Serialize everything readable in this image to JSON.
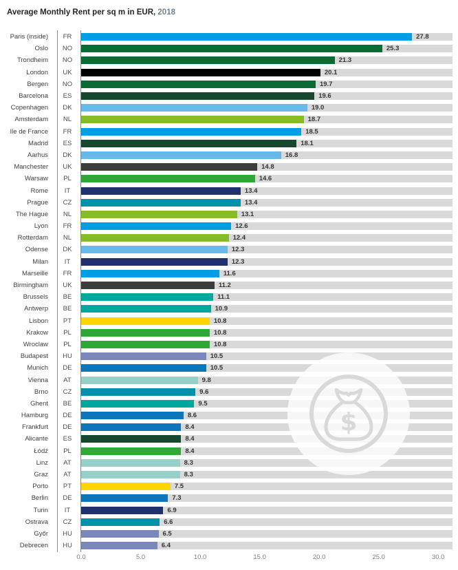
{
  "title": {
    "main": "Average Monthly Rent per sq m in EUR,",
    "year": "2018"
  },
  "colors": {
    "FR": "#009ee3",
    "NO": "#0a6b35",
    "UK_LONDON": "#000000",
    "UK": "#3c3c3b",
    "ES": "#17482d",
    "DK": "#66b9e8",
    "NL": "#86bc25",
    "PL": "#2fa838",
    "IT": "#21306f",
    "CZ": "#0092ad",
    "BE": "#00a79c",
    "PT": "#ffd500",
    "HU": "#7b86ba",
    "DE": "#0d75ba",
    "AT": "#97d0c7",
    "track": "#d9d9d9",
    "watermark": "#d9d9d9",
    "axis_label": "#7f7f7f"
  },
  "watermark": {
    "icon": "money-bag-icon"
  },
  "chart_data": {
    "type": "bar",
    "orientation": "horizontal",
    "title": "Average Monthly Rent per sq m in EUR, 2018",
    "xlabel": "",
    "ylabel": "",
    "xlim": [
      0,
      30
    ],
    "track_max": 31.2,
    "grid": false,
    "legend": false,
    "x_ticks": [
      "0.0",
      "5.0",
      "10.0",
      "15.0",
      "20.0",
      "25.0",
      "30.0"
    ],
    "x_tick_values": [
      0,
      5,
      10,
      15,
      20,
      25,
      30
    ],
    "rows": [
      {
        "city": "Paris (inside)",
        "country": "FR",
        "value": 27.8,
        "label": "27.8",
        "color_key": "FR"
      },
      {
        "city": "Oslo",
        "country": "NO",
        "value": 25.3,
        "label": "25.3",
        "color_key": "NO"
      },
      {
        "city": "Trondheim",
        "country": "NO",
        "value": 21.3,
        "label": "21.3",
        "color_key": "NO"
      },
      {
        "city": "London",
        "country": "UK",
        "value": 20.1,
        "label": "20.1",
        "color_key": "UK_LONDON"
      },
      {
        "city": "Bergen",
        "country": "NO",
        "value": 19.7,
        "label": "19.7",
        "color_key": "NO"
      },
      {
        "city": "Barcelona",
        "country": "ES",
        "value": 19.6,
        "label": "19.6",
        "color_key": "ES"
      },
      {
        "city": "Copenhagen",
        "country": "DK",
        "value": 19.0,
        "label": "19.0",
        "color_key": "DK"
      },
      {
        "city": "Amsterdam",
        "country": "NL",
        "value": 18.7,
        "label": "18.7",
        "color_key": "NL"
      },
      {
        "city": "Ile de France",
        "country": "FR",
        "value": 18.5,
        "label": "18.5",
        "color_key": "FR"
      },
      {
        "city": "Madrid",
        "country": "ES",
        "value": 18.1,
        "label": "18.1",
        "color_key": "ES"
      },
      {
        "city": "Aarhus",
        "country": "DK",
        "value": 16.8,
        "label": "16.8",
        "color_key": "DK"
      },
      {
        "city": "Manchester",
        "country": "UK",
        "value": 14.8,
        "label": "14.8",
        "color_key": "UK"
      },
      {
        "city": "Warsaw",
        "country": "PL",
        "value": 14.6,
        "label": "14.6",
        "color_key": "PL"
      },
      {
        "city": "Rome",
        "country": "IT",
        "value": 13.4,
        "label": "13.4",
        "color_key": "IT"
      },
      {
        "city": "Prague",
        "country": "CZ",
        "value": 13.4,
        "label": "13.4",
        "color_key": "CZ"
      },
      {
        "city": "The Hague",
        "country": "NL",
        "value": 13.1,
        "label": "13.1",
        "color_key": "NL"
      },
      {
        "city": "Lyon",
        "country": "FR",
        "value": 12.6,
        "label": "12.6",
        "color_key": "FR"
      },
      {
        "city": "Rotterdam",
        "country": "NL",
        "value": 12.4,
        "label": "12.4",
        "color_key": "NL"
      },
      {
        "city": "Odense",
        "country": "DK",
        "value": 12.3,
        "label": "12.3",
        "color_key": "DK"
      },
      {
        "city": "Milan",
        "country": "IT",
        "value": 12.3,
        "label": "12.3",
        "color_key": "IT"
      },
      {
        "city": "Marseille",
        "country": "FR",
        "value": 11.6,
        "label": "11.6",
        "color_key": "FR"
      },
      {
        "city": "Birmingham",
        "country": "UK",
        "value": 11.2,
        "label": "11.2",
        "color_key": "UK"
      },
      {
        "city": "Brussels",
        "country": "BE",
        "value": 11.1,
        "label": "11.1",
        "color_key": "BE"
      },
      {
        "city": "Antwerp",
        "country": "BE",
        "value": 10.9,
        "label": "10.9",
        "color_key": "BE"
      },
      {
        "city": "Lisbon",
        "country": "PT",
        "value": 10.8,
        "label": "10.8",
        "color_key": "PT"
      },
      {
        "city": "Krakow",
        "country": "PL",
        "value": 10.8,
        "label": "10.8",
        "color_key": "PL"
      },
      {
        "city": "Wroclaw",
        "country": "PL",
        "value": 10.8,
        "label": "10.8",
        "color_key": "PL"
      },
      {
        "city": "Budapest",
        "country": "HU",
        "value": 10.5,
        "label": "10.5",
        "color_key": "HU"
      },
      {
        "city": "Munich",
        "country": "DE",
        "value": 10.5,
        "label": "10.5",
        "color_key": "DE"
      },
      {
        "city": "Vienna",
        "country": "AT",
        "value": 9.8,
        "label": "9.8",
        "color_key": "AT"
      },
      {
        "city": "Brno",
        "country": "CZ",
        "value": 9.6,
        "label": "9.6",
        "color_key": "CZ"
      },
      {
        "city": "Ghent",
        "country": "BE",
        "value": 9.5,
        "label": "9.5",
        "color_key": "BE"
      },
      {
        "city": "Hamburg",
        "country": "DE",
        "value": 8.6,
        "label": "8.6",
        "color_key": "DE"
      },
      {
        "city": "Frankfurt",
        "country": "DE",
        "value": 8.4,
        "label": "8.4",
        "color_key": "DE"
      },
      {
        "city": "Alicante",
        "country": "ES",
        "value": 8.4,
        "label": "8.4",
        "color_key": "ES"
      },
      {
        "city": "Łódź",
        "country": "PL",
        "value": 8.4,
        "label": "8.4",
        "color_key": "PL"
      },
      {
        "city": "Linz",
        "country": "AT",
        "value": 8.3,
        "label": "8.3",
        "color_key": "AT"
      },
      {
        "city": "Graz",
        "country": "AT",
        "value": 8.3,
        "label": "8.3",
        "color_key": "AT"
      },
      {
        "city": "Porto",
        "country": "PT",
        "value": 7.5,
        "label": "7.5",
        "color_key": "PT"
      },
      {
        "city": "Berlin",
        "country": "DE",
        "value": 7.3,
        "label": "7.3",
        "color_key": "DE"
      },
      {
        "city": "Turin",
        "country": "IT",
        "value": 6.9,
        "label": "6.9",
        "color_key": "IT"
      },
      {
        "city": "Ostrava",
        "country": "CZ",
        "value": 6.6,
        "label": "6.6",
        "color_key": "CZ"
      },
      {
        "city": "Győr",
        "country": "HU",
        "value": 6.5,
        "label": "6.5",
        "color_key": "HU"
      },
      {
        "city": "Debrecen",
        "country": "HU",
        "value": 6.4,
        "label": "6.4",
        "color_key": "HU"
      }
    ]
  }
}
